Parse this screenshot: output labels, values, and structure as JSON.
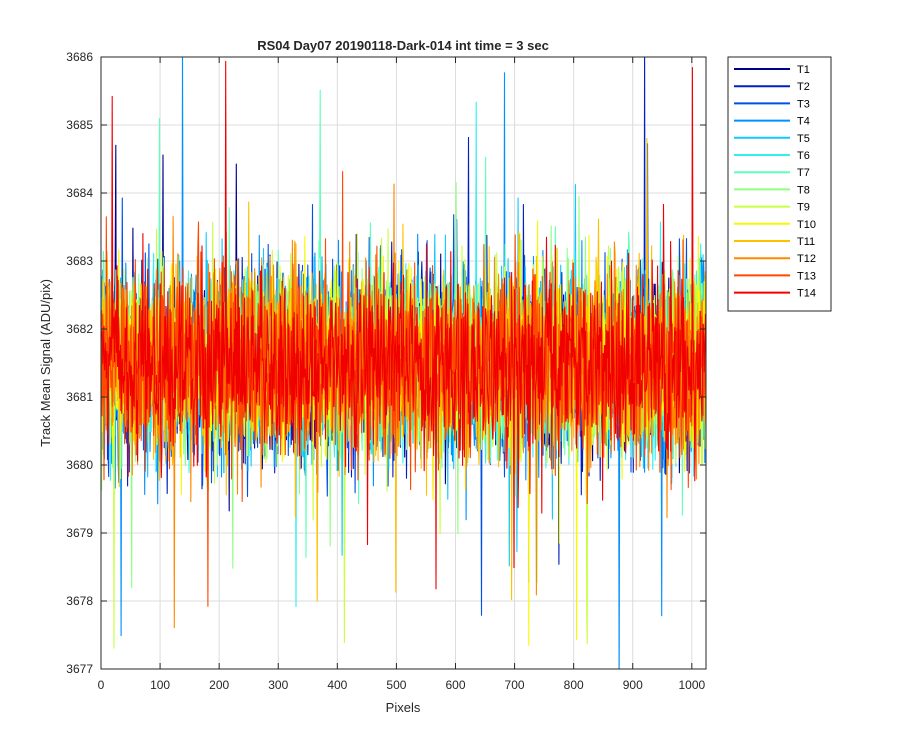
{
  "chart_data": {
    "type": "line",
    "title": "RS04 Day07 20190118-Dark-014 int time = 3 sec",
    "xlabel": "Pixels",
    "ylabel": "Track Mean Signal (ADU/pix)",
    "xlim": [
      0,
      1024
    ],
    "ylim": [
      3677,
      3686
    ],
    "xticks": [
      0,
      100,
      200,
      300,
      400,
      500,
      600,
      700,
      800,
      900,
      1000
    ],
    "yticks": [
      3677,
      3678,
      3679,
      3680,
      3681,
      3682,
      3683,
      3684,
      3685,
      3686
    ],
    "grid": true,
    "legend_position": "outside-top-right",
    "n_points": 1024,
    "series": [
      {
        "name": "T1",
        "color": "#00008F",
        "mean": 3681.5,
        "std": 1.0
      },
      {
        "name": "T2",
        "color": "#0020C0",
        "mean": 3681.5,
        "std": 1.0
      },
      {
        "name": "T3",
        "color": "#0050E8",
        "mean": 3681.5,
        "std": 1.0
      },
      {
        "name": "T4",
        "color": "#0090FF",
        "mean": 3681.5,
        "std": 1.0
      },
      {
        "name": "T5",
        "color": "#10C8FF",
        "mean": 3681.5,
        "std": 1.0
      },
      {
        "name": "T6",
        "color": "#30F0F0",
        "mean": 3681.5,
        "std": 1.0
      },
      {
        "name": "T7",
        "color": "#60FFB8",
        "mean": 3681.5,
        "std": 1.0
      },
      {
        "name": "T8",
        "color": "#90FF80",
        "mean": 3681.5,
        "std": 1.0
      },
      {
        "name": "T9",
        "color": "#C8FF40",
        "mean": 3681.5,
        "std": 1.0
      },
      {
        "name": "T10",
        "color": "#F8F800",
        "mean": 3681.5,
        "std": 1.0
      },
      {
        "name": "T11",
        "color": "#FFC000",
        "mean": 3681.5,
        "std": 1.0
      },
      {
        "name": "T12",
        "color": "#FF8800",
        "mean": 3681.5,
        "std": 1.0
      },
      {
        "name": "T13",
        "color": "#FF4800",
        "mean": 3681.5,
        "std": 1.0
      },
      {
        "name": "T14",
        "color": "#F00000",
        "mean": 3681.5,
        "std": 1.0
      }
    ]
  }
}
